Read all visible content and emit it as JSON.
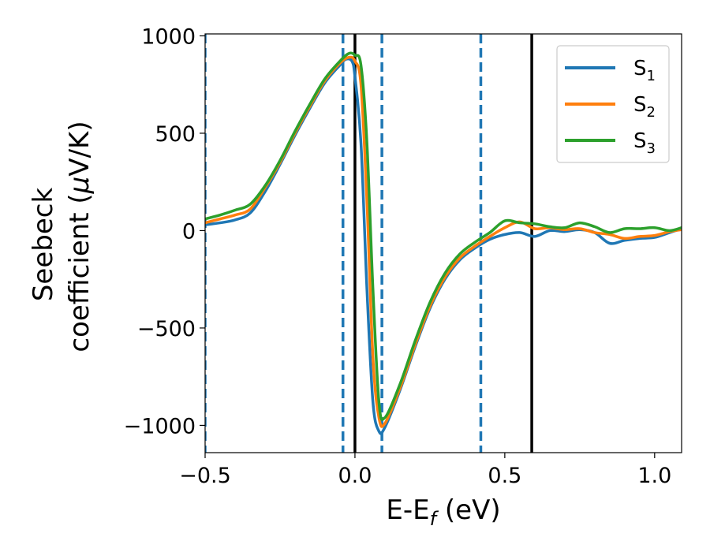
{
  "chart_data": {
    "type": "line",
    "title": "",
    "xlabel": {
      "main": "E-E",
      "sub": "f",
      "rest": " (eV)"
    },
    "ylabel": {
      "line1": "Seebeck",
      "line2_main": "coefficient  (",
      "line2_mu": "μ",
      "line2_rest": "V/K)"
    },
    "xlim": [
      -0.5,
      1.09
    ],
    "ylim": [
      -1140,
      1010
    ],
    "xticks": [
      -0.5,
      0.0,
      0.5,
      1.0
    ],
    "xtick_labels": [
      "−0.5",
      "0.0",
      "0.5",
      "1.0"
    ],
    "yticks": [
      -1000,
      -500,
      0,
      500,
      1000
    ],
    "ytick_labels": [
      "−1000",
      "−500",
      "0",
      "500",
      "1000"
    ],
    "grid": false,
    "legend_position": "top-right",
    "vlines_dashed": {
      "color": "#1f77b4",
      "x": [
        -0.5,
        -0.04,
        0.09,
        0.42
      ]
    },
    "vlines_solid": {
      "color": "#000000",
      "x": [
        0.0,
        0.59
      ]
    },
    "series": [
      {
        "name": "S",
        "sub": "1",
        "color": "#1f77b4",
        "points": [
          [
            -0.5,
            30
          ],
          [
            -0.45,
            40
          ],
          [
            -0.4,
            55
          ],
          [
            -0.35,
            90
          ],
          [
            -0.3,
            200
          ],
          [
            -0.25,
            340
          ],
          [
            -0.2,
            490
          ],
          [
            -0.15,
            630
          ],
          [
            -0.1,
            760
          ],
          [
            -0.05,
            850
          ],
          [
            -0.03,
            880
          ],
          [
            -0.01,
            870
          ],
          [
            0.0,
            790
          ],
          [
            0.02,
            450
          ],
          [
            0.04,
            -300
          ],
          [
            0.06,
            -880
          ],
          [
            0.08,
            -1030
          ],
          [
            0.1,
            -1010
          ],
          [
            0.15,
            -820
          ],
          [
            0.2,
            -600
          ],
          [
            0.25,
            -400
          ],
          [
            0.3,
            -250
          ],
          [
            0.35,
            -150
          ],
          [
            0.4,
            -90
          ],
          [
            0.45,
            -45
          ],
          [
            0.5,
            -20
          ],
          [
            0.55,
            -10
          ],
          [
            0.6,
            -30
          ],
          [
            0.65,
            0
          ],
          [
            0.7,
            -5
          ],
          [
            0.75,
            5
          ],
          [
            0.8,
            -10
          ],
          [
            0.85,
            -65
          ],
          [
            0.9,
            -50
          ],
          [
            0.95,
            -40
          ],
          [
            1.0,
            -35
          ],
          [
            1.05,
            -10
          ],
          [
            1.09,
            10
          ]
        ]
      },
      {
        "name": "S",
        "sub": "2",
        "color": "#ff7f0e",
        "points": [
          [
            -0.5,
            40
          ],
          [
            -0.45,
            60
          ],
          [
            -0.4,
            80
          ],
          [
            -0.35,
            110
          ],
          [
            -0.3,
            220
          ],
          [
            -0.25,
            350
          ],
          [
            -0.2,
            500
          ],
          [
            -0.15,
            640
          ],
          [
            -0.1,
            770
          ],
          [
            -0.05,
            860
          ],
          [
            -0.02,
            890
          ],
          [
            0.0,
            870
          ],
          [
            0.02,
            750
          ],
          [
            0.04,
            150
          ],
          [
            0.06,
            -650
          ],
          [
            0.08,
            -960
          ],
          [
            0.1,
            -990
          ],
          [
            0.15,
            -810
          ],
          [
            0.2,
            -590
          ],
          [
            0.25,
            -390
          ],
          [
            0.3,
            -240
          ],
          [
            0.35,
            -140
          ],
          [
            0.4,
            -80
          ],
          [
            0.45,
            -30
          ],
          [
            0.5,
            15
          ],
          [
            0.55,
            45
          ],
          [
            0.6,
            10
          ],
          [
            0.65,
            15
          ],
          [
            0.7,
            5
          ],
          [
            0.75,
            10
          ],
          [
            0.8,
            -10
          ],
          [
            0.85,
            -20
          ],
          [
            0.9,
            -40
          ],
          [
            0.95,
            -30
          ],
          [
            1.0,
            -25
          ],
          [
            1.05,
            -5
          ],
          [
            1.09,
            5
          ]
        ]
      },
      {
        "name": "S",
        "sub": "3",
        "color": "#2ca02c",
        "points": [
          [
            -0.5,
            60
          ],
          [
            -0.45,
            80
          ],
          [
            -0.4,
            105
          ],
          [
            -0.35,
            135
          ],
          [
            -0.3,
            230
          ],
          [
            -0.25,
            360
          ],
          [
            -0.2,
            510
          ],
          [
            -0.15,
            650
          ],
          [
            -0.1,
            780
          ],
          [
            -0.05,
            870
          ],
          [
            -0.02,
            910
          ],
          [
            0.0,
            900
          ],
          [
            0.02,
            850
          ],
          [
            0.04,
            450
          ],
          [
            0.06,
            -300
          ],
          [
            0.08,
            -880
          ],
          [
            0.1,
            -960
          ],
          [
            0.15,
            -790
          ],
          [
            0.2,
            -570
          ],
          [
            0.25,
            -370
          ],
          [
            0.3,
            -220
          ],
          [
            0.35,
            -120
          ],
          [
            0.4,
            -60
          ],
          [
            0.45,
            -10
          ],
          [
            0.5,
            50
          ],
          [
            0.55,
            40
          ],
          [
            0.6,
            35
          ],
          [
            0.65,
            20
          ],
          [
            0.7,
            15
          ],
          [
            0.75,
            40
          ],
          [
            0.8,
            20
          ],
          [
            0.85,
            -10
          ],
          [
            0.9,
            10
          ],
          [
            0.95,
            10
          ],
          [
            1.0,
            15
          ],
          [
            1.05,
            0
          ],
          [
            1.09,
            15
          ]
        ]
      }
    ]
  }
}
